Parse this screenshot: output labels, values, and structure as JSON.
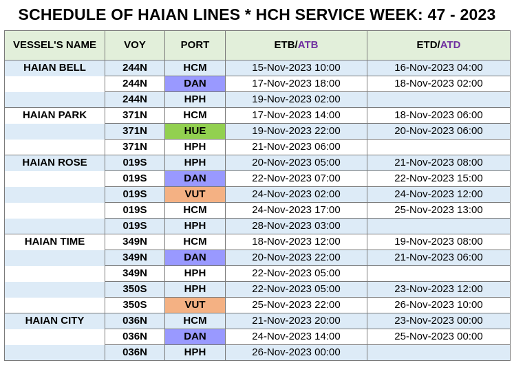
{
  "title": "SCHEDULE OF HAIAN LINES * HCH SERVICE WEEK: 47 - 2023",
  "headers": {
    "vessel": "VESSEL'S NAME",
    "voy": "VOY",
    "port": "PORT",
    "etb": "ETB/",
    "atb": "ATB",
    "etd": "ETD/",
    "atd": "ATD"
  },
  "colors": {
    "header_bg": "#e2efda",
    "row_blue": "#ddebf7",
    "dan": "#9999ff",
    "hue": "#92d050",
    "vut": "#f4b183",
    "actual_text": "#7030a0"
  },
  "rows": [
    {
      "vessel": "HAIAN BELL",
      "voy": "244N",
      "port": "HCM",
      "etb": "15-Nov-2023 10:00",
      "etd": "16-Nov-2023 04:00"
    },
    {
      "vessel": "",
      "voy": "244N",
      "port": "DAN",
      "etb": "17-Nov-2023 18:00",
      "etd": "18-Nov-2023 02:00"
    },
    {
      "vessel": "",
      "voy": "244N",
      "port": "HPH",
      "etb": "19-Nov-2023 02:00",
      "etd": ""
    },
    {
      "vessel": "HAIAN PARK",
      "voy": "371N",
      "port": "HCM",
      "etb": "17-Nov-2023 14:00",
      "etd": "18-Nov-2023 06:00"
    },
    {
      "vessel": "",
      "voy": "371N",
      "port": "HUE",
      "etb": "19-Nov-2023 22:00",
      "etd": "20-Nov-2023 06:00"
    },
    {
      "vessel": "",
      "voy": "371N",
      "port": "HPH",
      "etb": "21-Nov-2023 06:00",
      "etd": ""
    },
    {
      "vessel": "HAIAN ROSE",
      "voy": "019S",
      "port": "HPH",
      "etb": "20-Nov-2023 05:00",
      "etd": "21-Nov-2023 08:00"
    },
    {
      "vessel": "",
      "voy": "019S",
      "port": "DAN",
      "etb": "22-Nov-2023 07:00",
      "etd": "22-Nov-2023 15:00"
    },
    {
      "vessel": "",
      "voy": "019S",
      "port": "VUT",
      "etb": "24-Nov-2023 02:00",
      "etd": "24-Nov-2023 12:00"
    },
    {
      "vessel": "",
      "voy": "019S",
      "port": "HCM",
      "etb": "24-Nov-2023 17:00",
      "etd": "25-Nov-2023 13:00"
    },
    {
      "vessel": "",
      "voy": "019S",
      "port": "HPH",
      "etb": "28-Nov-2023 03:00",
      "etd": ""
    },
    {
      "vessel": "HAIAN TIME",
      "voy": "349N",
      "port": "HCM",
      "etb": "18-Nov-2023 12:00",
      "etd": "19-Nov-2023 08:00"
    },
    {
      "vessel": "",
      "voy": "349N",
      "port": "DAN",
      "etb": "20-Nov-2023 22:00",
      "etd": "21-Nov-2023 06:00"
    },
    {
      "vessel": "",
      "voy": "349N",
      "port": "HPH",
      "etb": "22-Nov-2023 05:00",
      "etd": ""
    },
    {
      "vessel": "",
      "voy": "350S",
      "port": "HPH",
      "etb": "22-Nov-2023 05:00",
      "etd": "23-Nov-2023 12:00"
    },
    {
      "vessel": "",
      "voy": "350S",
      "port": "VUT",
      "etb": "25-Nov-2023 22:00",
      "etd": "26-Nov-2023 10:00"
    },
    {
      "vessel": "HAIAN CITY",
      "voy": "036N",
      "port": "HCM",
      "etb": "21-Nov-2023 20:00",
      "etd": "23-Nov-2023 00:00"
    },
    {
      "vessel": "",
      "voy": "036N",
      "port": "DAN",
      "etb": "24-Nov-2023 14:00",
      "etd": "25-Nov-2023 00:00"
    },
    {
      "vessel": "",
      "voy": "036N",
      "port": "HPH",
      "etb": "26-Nov-2023 00:00",
      "etd": ""
    }
  ]
}
